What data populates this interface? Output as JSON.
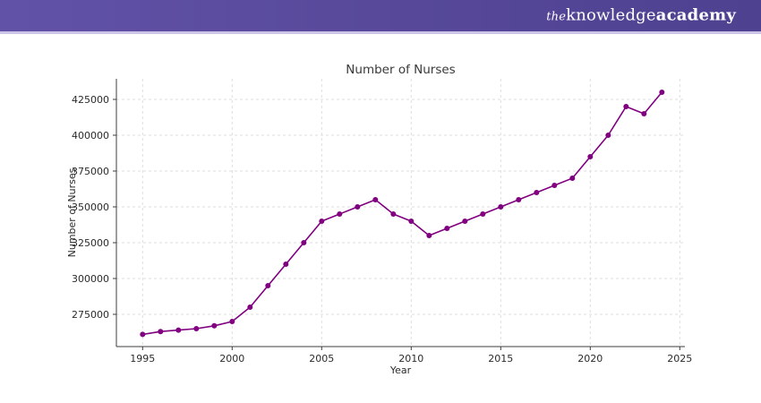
{
  "header": {
    "brand": {
      "the": "the",
      "knowledge": "knowledge",
      "academy": "academy"
    },
    "background_color": "#574899",
    "divider_color": "#ccc5e8"
  },
  "chart_data": {
    "type": "line",
    "title": "Number of Nurses",
    "xlabel": "Year",
    "ylabel": "Number of Nurses",
    "x": [
      1995,
      1996,
      1997,
      1998,
      1999,
      2000,
      2001,
      2002,
      2003,
      2004,
      2005,
      2006,
      2007,
      2008,
      2009,
      2010,
      2011,
      2012,
      2013,
      2014,
      2015,
      2016,
      2017,
      2018,
      2019,
      2020,
      2021,
      2022,
      2023,
      2024
    ],
    "values": [
      261000,
      263000,
      264000,
      265000,
      267000,
      270000,
      280000,
      295000,
      310000,
      325000,
      340000,
      345000,
      350000,
      355000,
      345000,
      340000,
      330000,
      335000,
      340000,
      345000,
      350000,
      355000,
      360000,
      365000,
      370000,
      385000,
      400000,
      420000,
      415000,
      430000
    ],
    "x_ticks": [
      1995,
      2000,
      2005,
      2010,
      2015,
      2020,
      2025
    ],
    "y_ticks": [
      275000,
      300000,
      325000,
      350000,
      375000,
      400000,
      425000
    ],
    "xlim": [
      1993.535,
      2025.285
    ],
    "ylim": [
      252500,
      439375
    ],
    "line_color": "#800080",
    "marker_color": "#800080",
    "grid": true,
    "grid_style": "dashed",
    "grid_color": "#dcdcdc",
    "axis_color": "#3c3c3c",
    "text_color": "#2b2b2b",
    "title_color": "#3a3a3a",
    "legend": "none"
  }
}
